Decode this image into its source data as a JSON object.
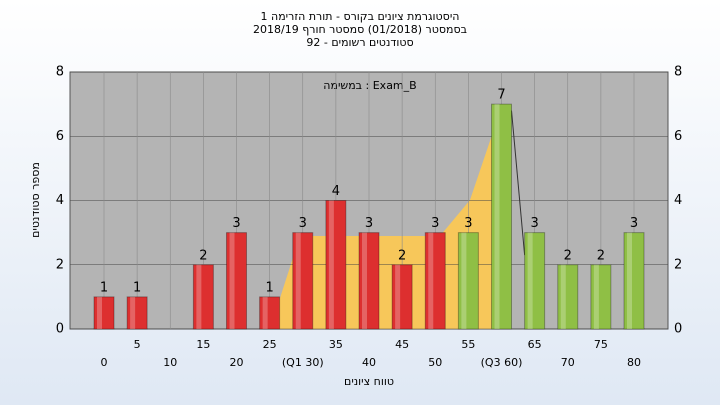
{
  "chart_data": {
    "type": "bar",
    "title_lines": [
      "היסטוגרמת ציונים בקורס - תורת הזרימה 1",
      "בסמסטר  (01/2018)  סמסטר חורף 2018/19",
      "סטודנטים רשומים - 92"
    ],
    "annotation": "במשימה : Exam_B",
    "y_label": "מספר סטודנטים",
    "x_label": "טווח ציונים",
    "categories": [
      "0",
      "5",
      "10",
      "15",
      "20",
      "25",
      "(Q1 30)",
      "35",
      "40",
      "45",
      "50",
      "55",
      "(Q3 60)",
      "65",
      "70",
      "75",
      "80"
    ],
    "values": [
      1,
      1,
      0,
      2,
      3,
      1,
      3,
      4,
      3,
      2,
      3,
      3,
      7,
      3,
      2,
      2,
      3
    ],
    "bar_colors": [
      "#dd2f2f",
      "#dd2f2f",
      "#dd2f2f",
      "#dd2f2f",
      "#dd2f2f",
      "#dd2f2f",
      "#dd2f2f",
      "#dd2f2f",
      "#dd2f2f",
      "#dd2f2f",
      "#dd2f2f",
      "#8fbf45",
      "#8fbf45",
      "#8fbf45",
      "#8fbf45",
      "#8fbf45",
      "#8fbf45"
    ],
    "ylim": [
      0,
      8
    ],
    "yticks": [
      0,
      2,
      4,
      6,
      8
    ],
    "grid": true
  }
}
